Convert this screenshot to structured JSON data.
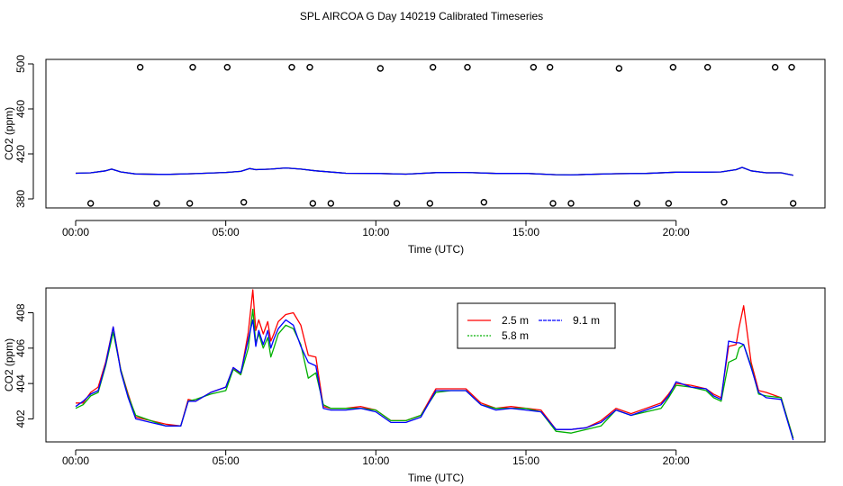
{
  "title": "SPL AIRCOA G  Day 140219  Calibrated Timeseries",
  "chart_data": [
    {
      "type": "scatter",
      "xlabel": "Time (UTC)",
      "ylabel": "CO2 (ppm)",
      "xlim": [
        0,
        24
      ],
      "ylim": [
        372,
        504
      ],
      "x_ticks": [
        0,
        5,
        10,
        15,
        20
      ],
      "x_tick_labels": [
        "00:00",
        "05:00",
        "10:00",
        "15:00",
        "20:00"
      ],
      "y_ticks": [
        380,
        420,
        460,
        500
      ],
      "y_tick_labels": [
        "380",
        "420",
        "460",
        "500"
      ],
      "line_series": [
        {
          "name": "2.5 m",
          "color": "#ff0000",
          "x": [
            0,
            0.5,
            1,
            1.2,
            1.5,
            2,
            3,
            4,
            5,
            5.5,
            5.8,
            6,
            6.5,
            7,
            7.5,
            8,
            9,
            10,
            11,
            12,
            13,
            14,
            15,
            16,
            16.5,
            17,
            18,
            19,
            20,
            21,
            21.5,
            22,
            22.2,
            22.5,
            23,
            23.5,
            23.9
          ],
          "values": [
            402.8,
            403.2,
            405,
            406.5,
            404,
            402.2,
            401.8,
            402.5,
            403.5,
            404.5,
            407,
            406,
            406.5,
            407.5,
            406.5,
            405,
            402.8,
            402.6,
            402,
            403.4,
            403.5,
            402.6,
            402.6,
            401.5,
            401.3,
            401.8,
            402.4,
            402.6,
            403.8,
            403.8,
            404,
            406,
            408,
            405,
            403.2,
            403.2,
            401
          ]
        },
        {
          "name": "5.8 m",
          "color": "#00b000",
          "x": [
            0,
            0.5,
            1,
            1.2,
            1.5,
            2,
            3,
            4,
            5,
            5.5,
            5.8,
            6,
            6.5,
            7,
            7.5,
            8,
            9,
            10,
            11,
            12,
            13,
            14,
            15,
            16,
            16.5,
            17,
            18,
            19,
            20,
            21,
            21.5,
            22,
            22.2,
            22.5,
            23,
            23.5,
            23.9
          ],
          "values": [
            402.8,
            403.2,
            405,
            406.5,
            404,
            402.2,
            401.8,
            402.5,
            403.5,
            404.5,
            407,
            406,
            406.5,
            407.5,
            406.5,
            405,
            402.8,
            402.6,
            402,
            403.4,
            403.5,
            402.6,
            402.6,
            401.5,
            401.3,
            401.8,
            402.4,
            402.6,
            403.8,
            403.8,
            404,
            406,
            408,
            405,
            403.2,
            403.2,
            401
          ]
        },
        {
          "name": "9.1 m",
          "color": "#0000ff",
          "x": [
            0,
            0.5,
            1,
            1.2,
            1.5,
            2,
            3,
            4,
            5,
            5.5,
            5.8,
            6,
            6.5,
            7,
            7.5,
            8,
            9,
            10,
            11,
            12,
            13,
            14,
            15,
            16,
            16.5,
            17,
            18,
            19,
            20,
            21,
            21.5,
            22,
            22.2,
            22.5,
            23,
            23.5,
            23.9
          ],
          "values": [
            402.8,
            403.2,
            405,
            406.5,
            404,
            402.2,
            401.8,
            402.5,
            403.5,
            404.5,
            407,
            406,
            406.5,
            407.5,
            406.5,
            405,
            402.8,
            402.6,
            402,
            403.4,
            403.5,
            402.6,
            402.6,
            401.5,
            401.3,
            401.8,
            402.4,
            402.6,
            403.8,
            403.8,
            404,
            406,
            408,
            405,
            403.2,
            403.2,
            401
          ]
        }
      ],
      "points_high": {
        "x": [
          2.15,
          3.9,
          5.05,
          7.2,
          7.8,
          10.15,
          11.9,
          13.05,
          15.25,
          15.8,
          18.1,
          19.9,
          21.05,
          23.3,
          23.85
        ],
        "values": [
          497,
          497,
          497,
          497,
          497,
          496,
          497,
          497,
          497,
          497,
          496,
          497,
          497,
          497,
          497
        ]
      },
      "points_low": {
        "x": [
          0.5,
          2.7,
          3.8,
          5.6,
          7.9,
          8.5,
          10.7,
          11.8,
          13.6,
          15.9,
          16.5,
          18.7,
          19.75,
          21.6,
          23.9
        ],
        "values": [
          376,
          376,
          376,
          377,
          376,
          376,
          376,
          376,
          377,
          376,
          376,
          376,
          376,
          377,
          376
        ]
      }
    },
    {
      "type": "line",
      "xlabel": "Time (UTC)",
      "ylabel": "CO2 (ppm)",
      "xlim": [
        0,
        24
      ],
      "ylim": [
        400.7,
        409.4
      ],
      "x_ticks": [
        0,
        5,
        10,
        15,
        20
      ],
      "x_tick_labels": [
        "00:00",
        "05:00",
        "10:00",
        "15:00",
        "20:00"
      ],
      "y_ticks": [
        402,
        404,
        406,
        408
      ],
      "y_tick_labels": [
        "402",
        "404",
        "406",
        "408"
      ],
      "legend": [
        "2.5 m",
        "5.8 m",
        "9.1 m"
      ],
      "series": [
        {
          "name": "2.5 m",
          "color": "#ff0000",
          "x": [
            0,
            0.25,
            0.5,
            0.75,
            1,
            1.25,
            1.5,
            1.75,
            2,
            2.5,
            3,
            3.5,
            3.75,
            4,
            4.5,
            5,
            5.25,
            5.5,
            5.75,
            5.9,
            6,
            6.1,
            6.25,
            6.4,
            6.5,
            6.6,
            6.75,
            7,
            7.25,
            7.5,
            7.75,
            8,
            8.25,
            8.5,
            9,
            9.5,
            10,
            10.5,
            11,
            11.5,
            12,
            12.5,
            13,
            13.5,
            14,
            14.5,
            15,
            15.5,
            16,
            16.5,
            17,
            17.5,
            18,
            18.5,
            19,
            19.5,
            19.75,
            20,
            20.5,
            21,
            21.25,
            21.5,
            21.75,
            22,
            22.1,
            22.25,
            22.5,
            22.75,
            23,
            23.5,
            23.9
          ],
          "values": [
            402.9,
            402.9,
            403.5,
            403.8,
            405.2,
            407.2,
            404.8,
            403.4,
            402.1,
            401.9,
            401.7,
            401.6,
            403.1,
            403.0,
            403.5,
            403.8,
            404.9,
            404.5,
            406.9,
            409.3,
            407.0,
            407.6,
            406.8,
            407.5,
            406.4,
            406.8,
            407.5,
            407.9,
            408.0,
            407.3,
            405.6,
            405.5,
            402.7,
            402.6,
            402.6,
            402.7,
            402.5,
            401.9,
            401.9,
            402.2,
            403.7,
            403.7,
            403.7,
            402.9,
            402.6,
            402.7,
            402.6,
            402.5,
            401.4,
            401.4,
            401.5,
            401.9,
            402.6,
            402.3,
            402.6,
            402.9,
            403.4,
            404.0,
            403.9,
            403.7,
            403.4,
            403.2,
            406.1,
            406.2,
            407.2,
            408.4,
            405.2,
            403.6,
            403.5,
            403.2,
            400.9
          ]
        },
        {
          "name": "5.8 m",
          "color": "#00b000",
          "x": [
            0,
            0.25,
            0.5,
            0.75,
            1,
            1.25,
            1.5,
            1.75,
            2,
            2.5,
            3,
            3.5,
            3.75,
            4,
            4.5,
            5,
            5.25,
            5.5,
            5.75,
            5.9,
            6,
            6.1,
            6.25,
            6.4,
            6.5,
            6.6,
            6.75,
            7,
            7.25,
            7.5,
            7.75,
            8,
            8.25,
            8.5,
            9,
            9.5,
            10,
            10.5,
            11,
            11.5,
            12,
            12.5,
            13,
            13.5,
            14,
            14.5,
            15,
            15.5,
            16,
            16.5,
            17,
            17.5,
            18,
            18.5,
            19,
            19.5,
            19.75,
            20,
            20.5,
            21,
            21.25,
            21.5,
            21.75,
            22,
            22.1,
            22.25,
            22.5,
            22.75,
            23,
            23.5,
            23.9
          ],
          "values": [
            402.6,
            402.8,
            403.3,
            403.5,
            405.0,
            406.9,
            404.8,
            403.3,
            402.2,
            401.9,
            401.6,
            401.6,
            403.0,
            403.1,
            403.4,
            403.6,
            404.8,
            404.5,
            406.0,
            408.2,
            406.3,
            406.8,
            406.0,
            406.6,
            405.5,
            406.0,
            406.8,
            407.3,
            407.1,
            406.2,
            404.3,
            404.6,
            402.8,
            402.6,
            402.6,
            402.6,
            402.5,
            401.9,
            401.9,
            402.2,
            403.5,
            403.6,
            403.6,
            402.8,
            402.6,
            402.6,
            402.6,
            402.4,
            401.3,
            401.2,
            401.4,
            401.6,
            402.5,
            402.2,
            402.4,
            402.6,
            403.2,
            403.9,
            403.8,
            403.6,
            403.2,
            403.0,
            405.2,
            405.4,
            406.0,
            406.2,
            405.0,
            403.4,
            403.3,
            403.2,
            400.9
          ]
        },
        {
          "name": "9.1 m",
          "color": "#0000ff",
          "x": [
            0,
            0.25,
            0.5,
            0.75,
            1,
            1.25,
            1.5,
            1.75,
            2,
            2.5,
            3,
            3.5,
            3.75,
            4,
            4.5,
            5,
            5.25,
            5.5,
            5.75,
            5.9,
            6,
            6.1,
            6.25,
            6.4,
            6.5,
            6.6,
            6.75,
            7,
            7.25,
            7.5,
            7.75,
            8,
            8.25,
            8.5,
            9,
            9.5,
            10,
            10.5,
            11,
            11.5,
            12,
            12.5,
            13,
            13.5,
            14,
            14.5,
            15,
            15.5,
            16,
            16.5,
            17,
            17.5,
            18,
            18.5,
            19,
            19.5,
            19.75,
            20,
            20.5,
            21,
            21.25,
            21.5,
            21.75,
            22,
            22.1,
            22.25,
            22.5,
            22.75,
            23,
            23.5,
            23.9
          ],
          "values": [
            402.7,
            403.0,
            403.4,
            403.6,
            405.1,
            407.2,
            404.7,
            403.2,
            402.0,
            401.8,
            401.6,
            401.6,
            403.0,
            403.0,
            403.5,
            403.8,
            404.9,
            404.6,
            406.5,
            407.6,
            406.1,
            407.0,
            406.2,
            407.0,
            406.0,
            406.5,
            407.1,
            407.6,
            407.3,
            406.1,
            405.2,
            405.0,
            402.6,
            402.5,
            402.5,
            402.6,
            402.4,
            401.8,
            401.8,
            402.1,
            403.6,
            403.6,
            403.6,
            402.8,
            402.5,
            402.6,
            402.5,
            402.4,
            401.4,
            401.4,
            401.5,
            401.8,
            402.5,
            402.2,
            402.5,
            402.8,
            403.3,
            404.1,
            403.8,
            403.7,
            403.3,
            403.1,
            406.4,
            406.3,
            406.3,
            406.2,
            404.9,
            403.5,
            403.2,
            403.1,
            400.8
          ]
        }
      ]
    }
  ]
}
